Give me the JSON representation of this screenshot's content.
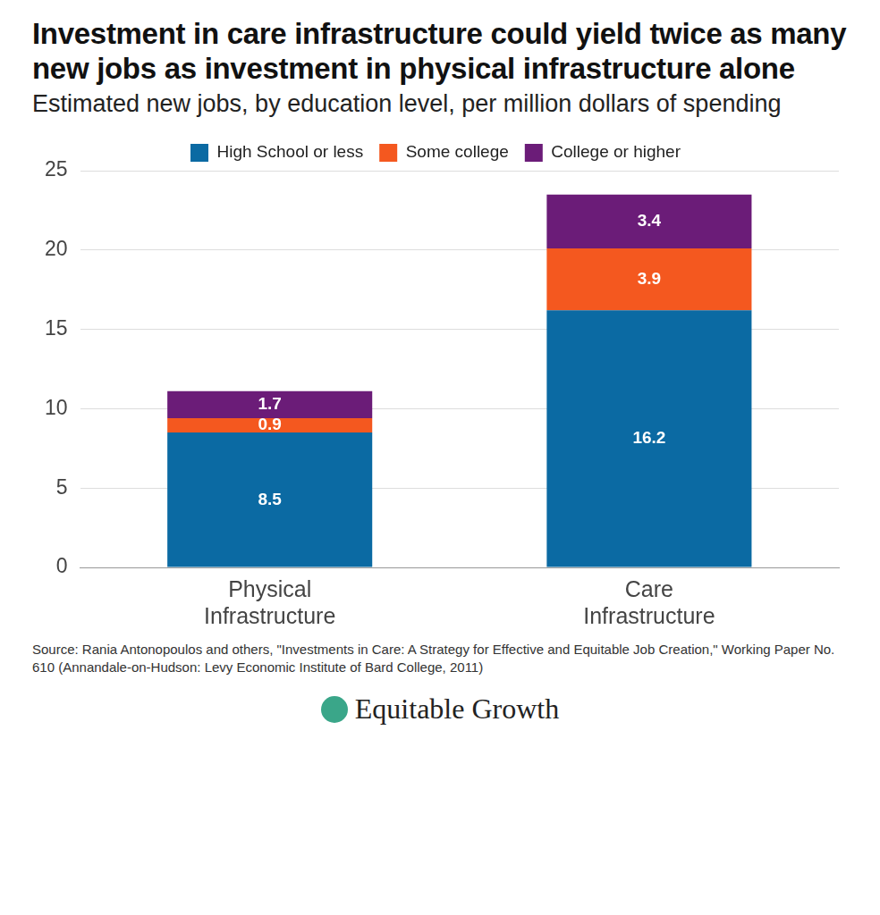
{
  "chart_data": {
    "type": "bar",
    "title": "Investment in care infrastructure could yield twice as many new jobs as investment in physical infrastructure alone",
    "subtitle": "Estimated new jobs, by education level, per million dollars of spending",
    "categories": [
      "Physical Infrastructure",
      "Care Infrastructure"
    ],
    "series": [
      {
        "name": "High School or less",
        "color": "#0b6aa3",
        "values": [
          8.5,
          16.2
        ]
      },
      {
        "name": "Some college",
        "color": "#f4581f",
        "values": [
          0.9,
          3.9
        ]
      },
      {
        "name": "College or higher",
        "color": "#6b1c78",
        "values": [
          1.7,
          3.4
        ]
      }
    ],
    "ylim": [
      0,
      25
    ],
    "yticks": [
      0,
      5,
      10,
      15,
      20,
      25
    ],
    "stacked": true,
    "data_labels": true,
    "grid": true,
    "legend": "top",
    "source": "Source: Rania Antonopoulos and others, \"Investments in Care: A Strategy for Effective and Equitable Job Creation,\" Working Paper No. 610 (Annandale-on-Hudson: Levy Economic Institute of Bard College, 2011)",
    "credit": "Equitable Growth"
  }
}
